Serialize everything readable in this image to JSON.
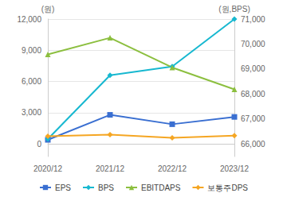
{
  "chart_data": {
    "type": "line",
    "categories": [
      "2020/12",
      "2021/12",
      "2022/12",
      "2023/12"
    ],
    "y_label": "(원)",
    "y2_label": "(원,BPS)",
    "ylim": [
      -1200,
      12000
    ],
    "yticks": [
      0,
      {
        "value": 3000,
        "label": "3,000"
      },
      {
        "value": 6000,
        "label": "6,000"
      },
      {
        "value": 9000,
        "label": "9,000"
      },
      {
        "value": 12000,
        "label": "12,000"
      }
    ],
    "y2lim": [
      65500,
      71000
    ],
    "y2ticks": [
      {
        "value": 66000,
        "label": "66,000"
      },
      {
        "value": 67000,
        "label": "67,000"
      },
      {
        "value": 68000,
        "label": "68,000"
      },
      {
        "value": 69000,
        "label": "69,000"
      },
      {
        "value": 70000,
        "label": "70,000"
      },
      {
        "value": 71000,
        "label": "71,000"
      }
    ],
    "grid": true,
    "legend": "bottom",
    "series": [
      {
        "name": "EPS",
        "color": "#3a6fd1",
        "marker": "square",
        "values": [
          400,
          2800,
          1900,
          2600
        ]
      },
      {
        "name": "BPS",
        "color": "#17b8d0",
        "marker": "diamond",
        "axis": "y2",
        "values": [
          66200,
          68750,
          69100,
          71000
        ]
      },
      {
        "name": "EBITDAPS",
        "color": "#8cbf3f",
        "marker": "triangle",
        "values": [
          8600,
          10200,
          7350,
          5250
        ]
      },
      {
        "name": "보통주DPS",
        "color": "#f5a623",
        "marker": "diamond",
        "values": [
          750,
          900,
          600,
          800
        ]
      }
    ]
  }
}
